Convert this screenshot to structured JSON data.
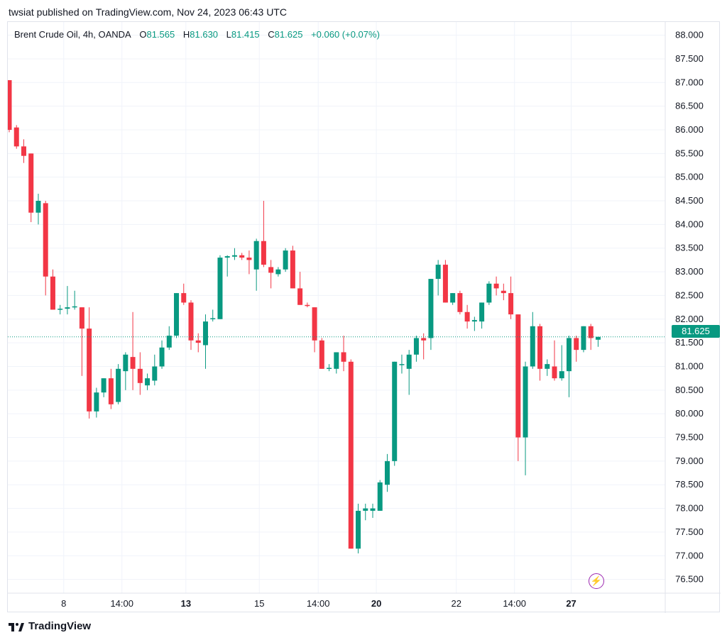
{
  "header": {
    "publish_line": "twsiat published on TradingView.com, Nov 24, 2023 06:43 UTC"
  },
  "legend": {
    "symbol": "Brent Crude Oil, 4h, OANDA",
    "o_label": "O",
    "o_value": "81.565",
    "h_label": "H",
    "h_value": "81.630",
    "l_label": "L",
    "l_value": "81.415",
    "c_label": "C",
    "c_value": "81.625",
    "change": "+0.060 (+0.07%)"
  },
  "price_tag": "81.625",
  "footer": {
    "brand": "TradingView"
  },
  "colors": {
    "up": "#089981",
    "down": "#f23645",
    "grid": "#f0f3fa",
    "text": "#131722",
    "bolt": "#9c27b0"
  },
  "chart_data": {
    "type": "candlestick",
    "ylim": [
      76.0,
      88.5
    ],
    "y_ticks": [
      "88.000",
      "87.500",
      "87.000",
      "86.500",
      "86.000",
      "85.500",
      "85.000",
      "84.500",
      "84.000",
      "83.500",
      "83.000",
      "82.500",
      "82.000",
      "81.500",
      "81.000",
      "80.500",
      "80.000",
      "79.500",
      "79.000",
      "78.500",
      "78.000",
      "77.500",
      "77.000",
      "76.500"
    ],
    "x_labels": [
      {
        "bar": 7.5,
        "text": "8",
        "bold": false
      },
      {
        "bar": 15.5,
        "text": "14:00",
        "bold": false
      },
      {
        "bar": 24.3,
        "text": "13",
        "bold": true
      },
      {
        "bar": 34.4,
        "text": "15",
        "bold": false
      },
      {
        "bar": 42.5,
        "text": "14:00",
        "bold": false
      },
      {
        "bar": 50.5,
        "text": "20",
        "bold": true
      },
      {
        "bar": 61.5,
        "text": "22",
        "bold": false
      },
      {
        "bar": 69.5,
        "text": "14:00",
        "bold": false
      },
      {
        "bar": 77.3,
        "text": "27",
        "bold": true
      }
    ],
    "last_price": 81.625,
    "candles": [
      {
        "o": 87.05,
        "h": 87.05,
        "l": 85.95,
        "c": 86.0
      },
      {
        "o": 86.05,
        "h": 86.1,
        "l": 85.6,
        "c": 85.65
      },
      {
        "o": 85.65,
        "h": 85.8,
        "l": 85.3,
        "c": 85.45
      },
      {
        "o": 85.5,
        "h": 85.5,
        "l": 84.05,
        "c": 84.25
      },
      {
        "o": 84.25,
        "h": 84.65,
        "l": 84.0,
        "c": 84.5
      },
      {
        "o": 84.45,
        "h": 84.5,
        "l": 82.5,
        "c": 82.9
      },
      {
        "o": 82.9,
        "h": 83.05,
        "l": 82.2,
        "c": 82.2
      },
      {
        "o": 82.2,
        "h": 82.3,
        "l": 82.1,
        "c": 82.22
      },
      {
        "o": 82.22,
        "h": 82.7,
        "l": 82.1,
        "c": 82.25
      },
      {
        "o": 82.25,
        "h": 82.6,
        "l": 82.2,
        "c": 82.27
      },
      {
        "o": 82.25,
        "h": 82.25,
        "l": 80.8,
        "c": 81.8
      },
      {
        "o": 81.8,
        "h": 82.25,
        "l": 79.9,
        "c": 80.05
      },
      {
        "o": 80.05,
        "h": 80.55,
        "l": 79.92,
        "c": 80.45
      },
      {
        "o": 80.45,
        "h": 80.75,
        "l": 80.35,
        "c": 80.75
      },
      {
        "o": 80.75,
        "h": 80.95,
        "l": 80.1,
        "c": 80.2
      },
      {
        "o": 80.25,
        "h": 81.05,
        "l": 80.2,
        "c": 80.95
      },
      {
        "o": 80.9,
        "h": 81.3,
        "l": 80.5,
        "c": 81.25
      },
      {
        "o": 81.2,
        "h": 82.15,
        "l": 80.5,
        "c": 80.95
      },
      {
        "o": 80.95,
        "h": 81.3,
        "l": 80.4,
        "c": 80.65
      },
      {
        "o": 80.6,
        "h": 80.85,
        "l": 80.5,
        "c": 80.75
      },
      {
        "o": 80.7,
        "h": 81.25,
        "l": 80.6,
        "c": 81.0
      },
      {
        "o": 81.0,
        "h": 81.55,
        "l": 80.95,
        "c": 81.4
      },
      {
        "o": 81.4,
        "h": 81.85,
        "l": 81.35,
        "c": 81.65
      },
      {
        "o": 81.65,
        "h": 82.55,
        "l": 81.6,
        "c": 82.55
      },
      {
        "o": 82.55,
        "h": 82.75,
        "l": 82.3,
        "c": 82.35
      },
      {
        "o": 82.35,
        "h": 82.4,
        "l": 81.35,
        "c": 81.55
      },
      {
        "o": 81.55,
        "h": 81.7,
        "l": 81.3,
        "c": 81.5
      },
      {
        "o": 81.45,
        "h": 82.1,
        "l": 80.95,
        "c": 81.95
      },
      {
        "o": 82.0,
        "h": 82.2,
        "l": 81.95,
        "c": 82.02
      },
      {
        "o": 82.0,
        "h": 83.35,
        "l": 82.0,
        "c": 83.3
      },
      {
        "o": 83.3,
        "h": 83.35,
        "l": 82.9,
        "c": 83.33
      },
      {
        "o": 83.32,
        "h": 83.5,
        "l": 83.25,
        "c": 83.35
      },
      {
        "o": 83.35,
        "h": 83.4,
        "l": 83.25,
        "c": 83.3
      },
      {
        "o": 83.3,
        "h": 83.45,
        "l": 82.95,
        "c": 83.25
      },
      {
        "o": 83.05,
        "h": 83.7,
        "l": 82.6,
        "c": 83.65
      },
      {
        "o": 83.65,
        "h": 84.5,
        "l": 83.1,
        "c": 83.15
      },
      {
        "o": 83.1,
        "h": 83.25,
        "l": 82.65,
        "c": 82.98
      },
      {
        "o": 82.95,
        "h": 83.1,
        "l": 82.9,
        "c": 83.05
      },
      {
        "o": 83.05,
        "h": 83.5,
        "l": 83.0,
        "c": 83.45
      },
      {
        "o": 83.45,
        "h": 83.55,
        "l": 82.65,
        "c": 82.65
      },
      {
        "o": 82.65,
        "h": 83.0,
        "l": 82.3,
        "c": 82.3
      },
      {
        "o": 82.3,
        "h": 82.35,
        "l": 82.25,
        "c": 82.28
      },
      {
        "o": 82.25,
        "h": 82.25,
        "l": 81.3,
        "c": 81.55
      },
      {
        "o": 81.55,
        "h": 81.6,
        "l": 80.95,
        "c": 80.95
      },
      {
        "o": 80.95,
        "h": 81.05,
        "l": 80.9,
        "c": 80.97
      },
      {
        "o": 80.95,
        "h": 81.3,
        "l": 80.85,
        "c": 81.3
      },
      {
        "o": 81.3,
        "h": 81.65,
        "l": 80.9,
        "c": 81.1
      },
      {
        "o": 81.1,
        "h": 81.15,
        "l": 77.15,
        "c": 77.15
      },
      {
        "o": 77.15,
        "h": 78.1,
        "l": 77.05,
        "c": 77.95
      },
      {
        "o": 77.95,
        "h": 78.1,
        "l": 77.75,
        "c": 78.0
      },
      {
        "o": 77.95,
        "h": 78.1,
        "l": 77.8,
        "c": 78.0
      },
      {
        "o": 77.95,
        "h": 78.6,
        "l": 77.95,
        "c": 78.55
      },
      {
        "o": 78.5,
        "h": 79.15,
        "l": 78.35,
        "c": 79.0
      },
      {
        "o": 79.0,
        "h": 81.1,
        "l": 78.9,
        "c": 81.1
      },
      {
        "o": 81.05,
        "h": 81.25,
        "l": 80.85,
        "c": 81.05
      },
      {
        "o": 80.95,
        "h": 81.35,
        "l": 80.4,
        "c": 81.25
      },
      {
        "o": 81.25,
        "h": 81.65,
        "l": 81.1,
        "c": 81.6
      },
      {
        "o": 81.6,
        "h": 81.7,
        "l": 81.15,
        "c": 81.55
      },
      {
        "o": 81.6,
        "h": 82.85,
        "l": 81.35,
        "c": 82.85
      },
      {
        "o": 82.85,
        "h": 83.25,
        "l": 82.5,
        "c": 83.15
      },
      {
        "o": 83.15,
        "h": 83.25,
        "l": 82.35,
        "c": 82.35
      },
      {
        "o": 82.35,
        "h": 82.55,
        "l": 82.3,
        "c": 82.55
      },
      {
        "o": 82.55,
        "h": 82.6,
        "l": 82.1,
        "c": 82.15
      },
      {
        "o": 82.15,
        "h": 82.3,
        "l": 81.8,
        "c": 81.95
      },
      {
        "o": 81.95,
        "h": 82.05,
        "l": 81.75,
        "c": 81.98
      },
      {
        "o": 81.95,
        "h": 82.35,
        "l": 81.8,
        "c": 82.35
      },
      {
        "o": 82.35,
        "h": 82.8,
        "l": 82.3,
        "c": 82.75
      },
      {
        "o": 82.75,
        "h": 82.9,
        "l": 82.5,
        "c": 82.65
      },
      {
        "o": 82.6,
        "h": 82.75,
        "l": 82.4,
        "c": 82.55
      },
      {
        "o": 82.55,
        "h": 82.9,
        "l": 82.0,
        "c": 82.1
      },
      {
        "o": 82.1,
        "h": 82.1,
        "l": 79.0,
        "c": 79.5
      },
      {
        "o": 79.5,
        "h": 81.1,
        "l": 78.7,
        "c": 81.0
      },
      {
        "o": 81.0,
        "h": 82.15,
        "l": 80.95,
        "c": 81.85
      },
      {
        "o": 81.85,
        "h": 81.9,
        "l": 80.7,
        "c": 80.95
      },
      {
        "o": 80.95,
        "h": 81.15,
        "l": 80.8,
        "c": 81.05
      },
      {
        "o": 81.0,
        "h": 81.55,
        "l": 80.7,
        "c": 80.75
      },
      {
        "o": 80.75,
        "h": 81.45,
        "l": 80.7,
        "c": 80.9
      },
      {
        "o": 80.9,
        "h": 81.65,
        "l": 80.35,
        "c": 81.6
      },
      {
        "o": 81.6,
        "h": 81.65,
        "l": 81.1,
        "c": 81.35
      },
      {
        "o": 81.35,
        "h": 81.85,
        "l": 81.3,
        "c": 81.85
      },
      {
        "o": 81.85,
        "h": 81.9,
        "l": 81.35,
        "c": 81.6
      },
      {
        "o": 81.565,
        "h": 81.63,
        "l": 81.415,
        "c": 81.625
      }
    ]
  }
}
